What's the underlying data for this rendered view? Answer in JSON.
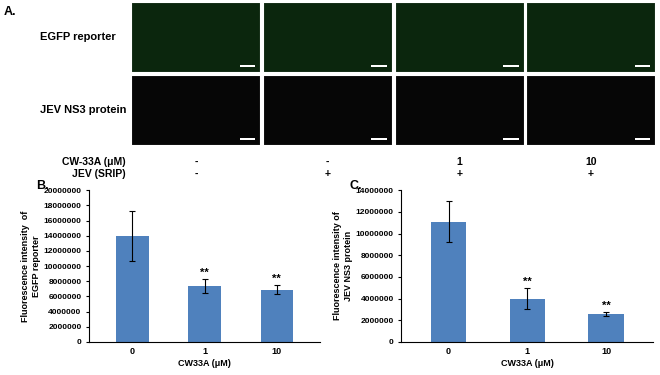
{
  "panel_a": {
    "label": "A.",
    "rows": [
      "EGFP reporter",
      "JEV NS3 protein"
    ],
    "conditions": [
      {
        "name": "CW-33A (μM)",
        "values": [
          "-",
          "-",
          "1",
          "10"
        ]
      },
      {
        "name": "JEV (SRIP)",
        "values": [
          "-",
          "+",
          "+",
          "+"
        ]
      }
    ]
  },
  "chart_data": [
    {
      "type": "bar",
      "label": "B.",
      "ylabel": "Fluorescence intensity  of\nEGFP reporter",
      "xlabel": "CW33A (μM)",
      "categories": [
        "0",
        "1",
        "10"
      ],
      "values": [
        14000000,
        7400000,
        6900000
      ],
      "errors": [
        3300000,
        900000,
        600000
      ],
      "significance": [
        null,
        "**",
        "**"
      ],
      "color": "#4f81bd",
      "ylim": [
        0,
        20000000
      ],
      "yticks": [
        0,
        2000000,
        4000000,
        6000000,
        8000000,
        10000000,
        12000000,
        14000000,
        16000000,
        18000000,
        20000000
      ],
      "grid": false
    },
    {
      "type": "bar",
      "label": "C.",
      "ylabel": "Fluorescence intensity of\nJEV NS3 protein",
      "xlabel": "CW33A (μM)",
      "categories": [
        "0",
        "1",
        "10"
      ],
      "values": [
        11100000,
        4000000,
        2600000
      ],
      "errors": [
        1900000,
        1000000,
        200000
      ],
      "significance": [
        null,
        "**",
        "**"
      ],
      "color": "#4f81bd",
      "ylim": [
        0,
        14000000
      ],
      "yticks": [
        0,
        2000000,
        4000000,
        6000000,
        8000000,
        10000000,
        12000000,
        14000000
      ],
      "grid": false
    }
  ]
}
